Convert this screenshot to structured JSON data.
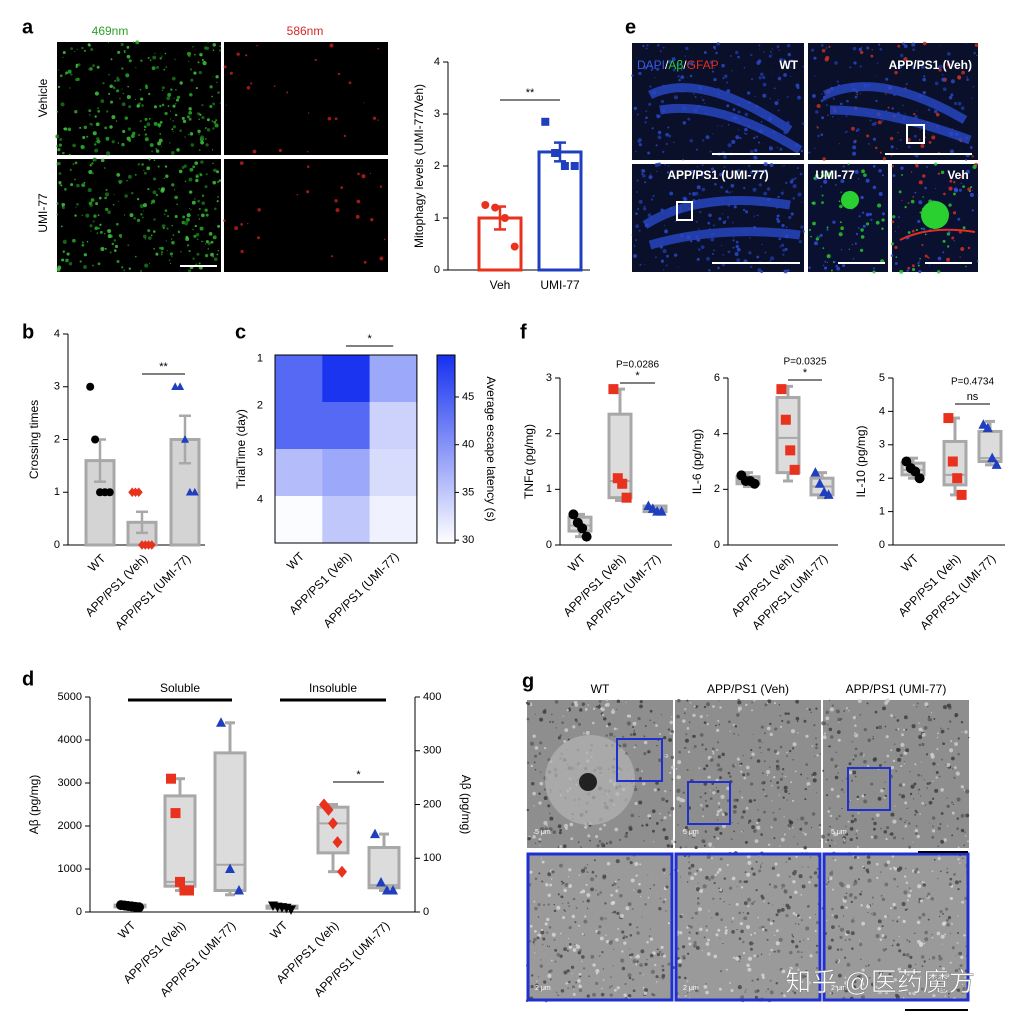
{
  "letters": [
    "a",
    "b",
    "c",
    "d",
    "e",
    "f",
    "g"
  ],
  "image_a": {
    "columns": [
      "469nm",
      "586nm"
    ],
    "rows": [
      "Vehicle",
      "UMI-77"
    ]
  },
  "image_e": {
    "stain": [
      "DAPI",
      "/",
      "Aβ",
      "/",
      "GFAP"
    ],
    "labels": [
      "WT",
      "APP/PS1 (Veh)",
      "APP/PS1 (UMI-77)",
      "UMI-77",
      "Veh"
    ]
  },
  "image_g": {
    "columns": [
      "WT",
      "APP/PS1 (Veh)",
      "APP/PS1 (UMI-77)"
    ],
    "scale_labels": [
      "5 μm",
      "5 μm",
      "5 μm",
      "2 μm",
      "2 μm",
      "2 μm"
    ]
  },
  "watermark": "知乎 @医药魔方",
  "chart_data": [
    {
      "type": "bar",
      "ylabel": "Mitophagy levels (UMI-77/Veh)",
      "ylim": [
        0,
        4
      ],
      "yticks": [
        0,
        1,
        2,
        3,
        4
      ],
      "bar_fill": "#ffffff",
      "rotate_labels": false,
      "series": [
        {
          "name": "Veh",
          "color": "#e8321e",
          "bar_edge": "#e8321e",
          "marker": "circle",
          "value": 1.0,
          "error": 0.22,
          "points": [
            1.25,
            1.2,
            1.0,
            0.45
          ]
        },
        {
          "name": "UMI-77",
          "color": "#1f3fbf",
          "bar_edge": "#1f3fbf",
          "marker": "square",
          "value": 2.27,
          "error": 0.18,
          "points": [
            2.85,
            2.25,
            2.0,
            2.0
          ]
        }
      ],
      "significance": {
        "label": "**",
        "between": [
          0,
          1
        ]
      }
    },
    {
      "type": "bar",
      "ylabel": "Crossing times",
      "ylim": [
        0,
        4
      ],
      "yticks": [
        0,
        1,
        2,
        3,
        4
      ],
      "bar_fill": "#d4d4d4",
      "rotate_labels": true,
      "series": [
        {
          "name": "WT",
          "color": "#000000",
          "bar_edge": "#a8a8a8",
          "marker": "circle",
          "value": 1.6,
          "error": 0.4,
          "points": [
            3,
            2,
            1,
            1,
            1
          ]
        },
        {
          "name": "APP/PS1 (Veh)",
          "color": "#e8321e",
          "bar_edge": "#a8a8a8",
          "marker": "diamond",
          "value": 0.43,
          "error": 0.2,
          "points": [
            1,
            1,
            1,
            0,
            0,
            0,
            0
          ]
        },
        {
          "name": "APP/PS1 (UMI-77)",
          "color": "#1f3fbf",
          "bar_edge": "#a8a8a8",
          "marker": "triangle",
          "value": 2.0,
          "error": 0.45,
          "points": [
            3,
            3,
            2,
            1,
            1
          ]
        }
      ],
      "significance": {
        "label": "**",
        "between": [
          1,
          2
        ]
      }
    },
    {
      "type": "heatmap",
      "ylabel": "TrialTime (day)",
      "colorbar_label": "Average escape latency (s)",
      "categories": [
        "WT",
        "APP/PS1 (Veh)",
        "APP/PS1 (UMI-77)"
      ],
      "rows": [
        1,
        2,
        3,
        4
      ],
      "values": [
        [
          44,
          49,
          38
        ],
        [
          44,
          44,
          34
        ],
        [
          36,
          38,
          33
        ],
        [
          30,
          35,
          31
        ]
      ],
      "clim": [
        29.7,
        49.4
      ],
      "cticks": [
        30,
        35,
        40,
        45
      ],
      "colors": [
        "#ffffff",
        "#1530f0"
      ],
      "significance": {
        "label": "*",
        "between": [
          1,
          2
        ]
      }
    },
    {
      "type": "box",
      "ylabel": "Aβ (pg/mg)",
      "y2label": "Aβ (pg/mg)",
      "ylim": [
        0,
        5000
      ],
      "yticks": [
        0,
        1000,
        2000,
        3000,
        4000,
        5000
      ],
      "y2lim": [
        0,
        400
      ],
      "y2ticks": [
        0,
        100,
        200,
        300,
        400
      ],
      "group_labels": [
        "Soluble",
        "Insoluble"
      ],
      "series": [
        {
          "name": "WT",
          "color": "#000000",
          "marker": "circle",
          "box": [
            100,
            120,
            140,
            160,
            180
          ],
          "points": [
            160,
            150,
            140,
            130,
            120,
            110
          ]
        },
        {
          "name": "APP/PS1 (Veh)",
          "color": "#e8321e",
          "marker": "square",
          "box": [
            500,
            600,
            700,
            2700,
            3100
          ],
          "points": [
            3100,
            2300,
            700,
            500,
            500
          ]
        },
        {
          "name": "APP/PS1 (UMI-77)",
          "color": "#1f3fbf",
          "marker": "triangle",
          "box": [
            400,
            500,
            1100,
            3700,
            4400
          ],
          "points": [
            4400,
            1000,
            500
          ]
        },
        {
          "name": "WT",
          "color": "#000000",
          "marker": "triangle-down",
          "axis": "y2",
          "box": [
            5,
            7,
            9,
            11,
            13
          ],
          "points": [
            12,
            10,
            9,
            8,
            5
          ]
        },
        {
          "name": "APP/PS1 (Veh)",
          "color": "#e8321e",
          "marker": "diamond",
          "axis": "y2",
          "box": [
            75,
            110,
            165,
            195,
            200
          ],
          "points": [
            200,
            190,
            165,
            130,
            75
          ]
        },
        {
          "name": "APP/PS1 (UMI-77)",
          "color": "#1f3fbf",
          "marker": "triangle",
          "axis": "y2",
          "box": [
            40,
            45,
            50,
            120,
            145
          ],
          "points": [
            145,
            55,
            40,
            40
          ]
        }
      ],
      "significance": {
        "label": "*",
        "between": [
          4,
          5
        ]
      }
    },
    {
      "type": "box",
      "ylabel": "TNFα (pg/mg)",
      "ylim": [
        0,
        3
      ],
      "yticks": [
        0,
        1,
        2,
        3
      ],
      "series": [
        {
          "name": "WT",
          "color": "#000000",
          "marker": "circle",
          "box": [
            0.15,
            0.25,
            0.35,
            0.5,
            0.55
          ],
          "points": [
            0.55,
            0.4,
            0.3,
            0.15
          ]
        },
        {
          "name": "APP/PS1 (Veh)",
          "color": "#e8321e",
          "marker": "square",
          "box": [
            0.8,
            0.85,
            1.15,
            2.35,
            2.8
          ],
          "points": [
            2.8,
            1.2,
            1.1,
            0.85
          ]
        },
        {
          "name": "APP/PS1 (UMI-77)",
          "color": "#1f3fbf",
          "marker": "triangle",
          "box": [
            0.6,
            0.6,
            0.65,
            0.7,
            0.7
          ],
          "points": [
            0.7,
            0.65,
            0.6,
            0.6
          ]
        }
      ],
      "significance": {
        "label": "*",
        "between": [
          1,
          2
        ],
        "p_label": "P=0.0286"
      }
    },
    {
      "type": "box",
      "ylabel": "IL-6 (pg/mg)",
      "ylim": [
        0,
        6
      ],
      "yticks": [
        0,
        2,
        4,
        6
      ],
      "series": [
        {
          "name": "WT",
          "color": "#000000",
          "marker": "circle",
          "box": [
            2.1,
            2.2,
            2.3,
            2.45,
            2.6
          ],
          "points": [
            2.5,
            2.3,
            2.3,
            2.2
          ]
        },
        {
          "name": "APP/PS1 (Veh)",
          "color": "#e8321e",
          "marker": "square",
          "box": [
            2.3,
            2.6,
            3.85,
            5.3,
            5.7
          ],
          "points": [
            5.6,
            4.5,
            3.4,
            2.7
          ]
        },
        {
          "name": "APP/PS1 (UMI-77)",
          "color": "#1f3fbf",
          "marker": "triangle",
          "box": [
            1.7,
            1.8,
            2.1,
            2.4,
            2.6
          ],
          "points": [
            2.6,
            2.2,
            1.9,
            1.8
          ]
        }
      ],
      "significance": {
        "label": "*",
        "between": [
          1,
          2
        ],
        "p_label": "P=0.0325"
      }
    },
    {
      "type": "box",
      "ylabel": "IL-10 (pg/mg)",
      "ylim": [
        0,
        5
      ],
      "yticks": [
        0,
        1,
        2,
        3,
        4,
        5
      ],
      "series": [
        {
          "name": "WT",
          "color": "#000000",
          "marker": "circle",
          "box": [
            2.0,
            2.1,
            2.25,
            2.45,
            2.6
          ],
          "points": [
            2.5,
            2.3,
            2.2,
            2.0
          ]
        },
        {
          "name": "APP/PS1 (Veh)",
          "color": "#e8321e",
          "marker": "square",
          "box": [
            1.5,
            1.8,
            2.1,
            3.1,
            3.8
          ],
          "points": [
            3.8,
            2.5,
            2.0,
            1.5
          ]
        },
        {
          "name": "APP/PS1 (UMI-77)",
          "color": "#1f3fbf",
          "marker": "triangle",
          "box": [
            2.4,
            2.5,
            2.6,
            3.4,
            3.7
          ],
          "points": [
            3.6,
            3.5,
            2.6,
            2.4
          ]
        }
      ],
      "significance": {
        "label": "ns",
        "between": [
          1,
          2
        ],
        "p_label": "P=0.4734"
      }
    }
  ]
}
